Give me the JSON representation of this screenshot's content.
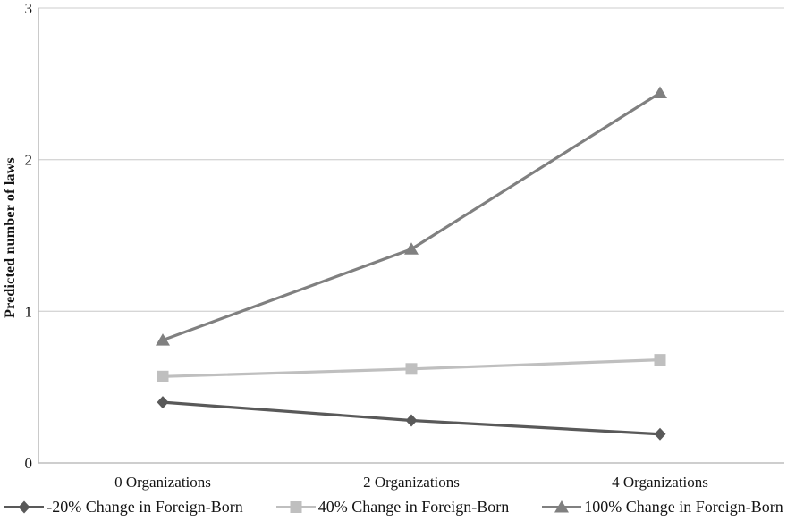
{
  "chart_data": {
    "type": "line",
    "title": "",
    "xlabel": "",
    "ylabel": "Predicted number of laws",
    "categories": [
      "0 Organizations",
      "2 Organizations",
      "4 Organizations"
    ],
    "series": [
      {
        "name": "-20% Change in Foreign-Born",
        "values": [
          0.4,
          0.28,
          0.19
        ],
        "color": "#595959",
        "marker": "diamond"
      },
      {
        "name": "40% Change in Foreign-Born",
        "values": [
          0.57,
          0.62,
          0.68
        ],
        "color": "#bfbfbf",
        "marker": "square"
      },
      {
        "name": "100% Change in Foreign-Born",
        "values": [
          0.81,
          1.41,
          2.44
        ],
        "color": "#808080",
        "marker": "triangle"
      }
    ],
    "ylim": [
      0,
      3
    ],
    "yticks": [
      0,
      1,
      2,
      3
    ],
    "grid": "horizontal",
    "legend_position": "bottom",
    "grid_color": "#d6d6d6",
    "axis_color": "#bdbdbd",
    "text_color": "#141414"
  }
}
